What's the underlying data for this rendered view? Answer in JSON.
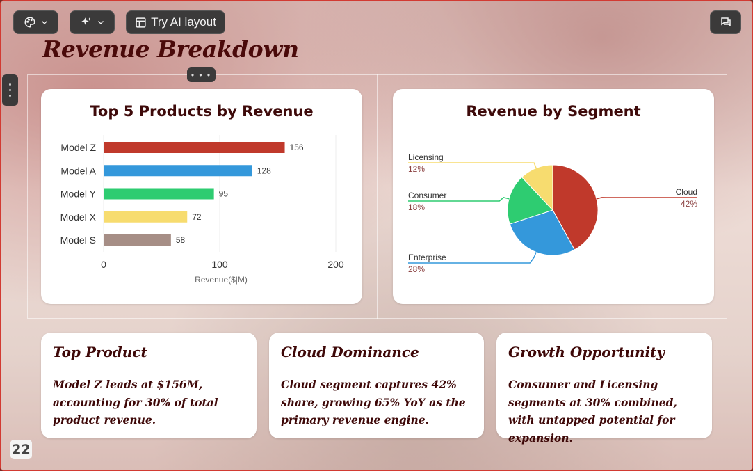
{
  "toolbar": {
    "theme_icon": "palette-icon",
    "magic_icon": "sparkles-icon",
    "ai_layout_icon": "layout-icon",
    "ai_layout_label": "Try AI layout",
    "comments_icon": "comments-icon"
  },
  "slide": {
    "title": "Revenue Breakdown",
    "page_number": "22"
  },
  "bar_chart_card": {
    "title": "Top 5 Products by Revenue"
  },
  "pie_chart_card": {
    "title": "Revenue by Segment"
  },
  "chart_data": [
    {
      "type": "bar",
      "orientation": "horizontal",
      "title": "Top 5 Products by Revenue",
      "categories": [
        "Model Z",
        "Model A",
        "Model Y",
        "Model X",
        "Model S"
      ],
      "values": [
        156,
        128,
        95,
        72,
        58
      ],
      "colors": [
        "#c0392b",
        "#3498db",
        "#2ecc71",
        "#f7dc6f",
        "#a1887f"
      ],
      "xlabel": "Revenue($|M)",
      "xlim": [
        0,
        200
      ],
      "xticks": [
        0,
        100,
        200
      ],
      "grid": true,
      "data_labels": true
    },
    {
      "type": "pie",
      "title": "Revenue by Segment",
      "categories": [
        "Cloud",
        "Enterprise",
        "Consumer",
        "Licensing"
      ],
      "values": [
        42,
        28,
        18,
        12
      ],
      "labels": [
        "42%",
        "28%",
        "18%",
        "12%"
      ],
      "colors": [
        "#c0392b",
        "#3498db",
        "#2ecc71",
        "#f7dc6f"
      ]
    }
  ],
  "insights": [
    {
      "title": "Top Product",
      "body": "Model Z leads at $156M, accounting for 30% of total product revenue."
    },
    {
      "title": "Cloud Dominance",
      "body": "Cloud segment captures 42% share, growing 65% YoY as the primary revenue engine."
    },
    {
      "title": "Growth Opportunity",
      "body": "Consumer and Licensing segments at 30% combined, with untapped potential for expansion."
    }
  ]
}
